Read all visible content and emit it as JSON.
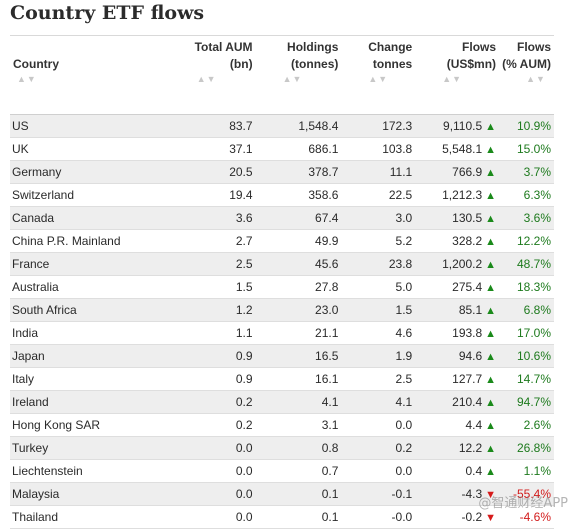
{
  "title": "Country ETF flows",
  "headers": {
    "country": "Country",
    "aum": [
      "Total AUM",
      "(bn)"
    ],
    "holdings": [
      "Holdings",
      "(tonnes)"
    ],
    "change": [
      "Change",
      "tonnes"
    ],
    "flows": [
      "Flows",
      "(US$mn)"
    ],
    "flows_pct": [
      "Flows",
      "(% AUM)"
    ],
    "sort_icon": "▲▼"
  },
  "colors": {
    "positive": "#1e7a1e",
    "negative": "#d21c1c",
    "stripe": "#eeeeee"
  },
  "rows": [
    {
      "country": "US",
      "aum": "83.7",
      "holdings": "1,548.4",
      "change": "172.3",
      "flows": "9,110.5",
      "dir": "up",
      "pct": "10.9%"
    },
    {
      "country": "UK",
      "aum": "37.1",
      "holdings": "686.1",
      "change": "103.8",
      "flows": "5,548.1",
      "dir": "up",
      "pct": "15.0%"
    },
    {
      "country": "Germany",
      "aum": "20.5",
      "holdings": "378.7",
      "change": "11.1",
      "flows": "766.9",
      "dir": "up",
      "pct": "3.7%"
    },
    {
      "country": "Switzerland",
      "aum": "19.4",
      "holdings": "358.6",
      "change": "22.5",
      "flows": "1,212.3",
      "dir": "up",
      "pct": "6.3%"
    },
    {
      "country": "Canada",
      "aum": "3.6",
      "holdings": "67.4",
      "change": "3.0",
      "flows": "130.5",
      "dir": "up",
      "pct": "3.6%"
    },
    {
      "country": "China P.R. Mainland",
      "aum": "2.7",
      "holdings": "49.9",
      "change": "5.2",
      "flows": "328.2",
      "dir": "up",
      "pct": "12.2%"
    },
    {
      "country": "France",
      "aum": "2.5",
      "holdings": "45.6",
      "change": "23.8",
      "flows": "1,200.2",
      "dir": "up",
      "pct": "48.7%"
    },
    {
      "country": "Australia",
      "aum": "1.5",
      "holdings": "27.8",
      "change": "5.0",
      "flows": "275.4",
      "dir": "up",
      "pct": "18.3%"
    },
    {
      "country": "South Africa",
      "aum": "1.2",
      "holdings": "23.0",
      "change": "1.5",
      "flows": "85.1",
      "dir": "up",
      "pct": "6.8%"
    },
    {
      "country": "India",
      "aum": "1.1",
      "holdings": "21.1",
      "change": "4.6",
      "flows": "193.8",
      "dir": "up",
      "pct": "17.0%"
    },
    {
      "country": "Japan",
      "aum": "0.9",
      "holdings": "16.5",
      "change": "1.9",
      "flows": "94.6",
      "dir": "up",
      "pct": "10.6%"
    },
    {
      "country": "Italy",
      "aum": "0.9",
      "holdings": "16.1",
      "change": "2.5",
      "flows": "127.7",
      "dir": "up",
      "pct": "14.7%"
    },
    {
      "country": "Ireland",
      "aum": "0.2",
      "holdings": "4.1",
      "change": "4.1",
      "flows": "210.4",
      "dir": "up",
      "pct": "94.7%"
    },
    {
      "country": "Hong Kong SAR",
      "aum": "0.2",
      "holdings": "3.1",
      "change": "0.0",
      "flows": "4.4",
      "dir": "up",
      "pct": "2.6%"
    },
    {
      "country": "Turkey",
      "aum": "0.0",
      "holdings": "0.8",
      "change": "0.2",
      "flows": "12.2",
      "dir": "up",
      "pct": "26.8%"
    },
    {
      "country": "Liechtenstein",
      "aum": "0.0",
      "holdings": "0.7",
      "change": "0.0",
      "flows": "0.4",
      "dir": "up",
      "pct": "1.1%"
    },
    {
      "country": "Malaysia",
      "aum": "0.0",
      "holdings": "0.1",
      "change": "-0.1",
      "flows": "-4.3",
      "dir": "down",
      "pct": "-55.4%"
    },
    {
      "country": "Thailand",
      "aum": "0.0",
      "holdings": "0.1",
      "change": "-0.0",
      "flows": "-0.2",
      "dir": "down",
      "pct": "-4.6%"
    }
  ],
  "watermark": "@智通财经APP"
}
